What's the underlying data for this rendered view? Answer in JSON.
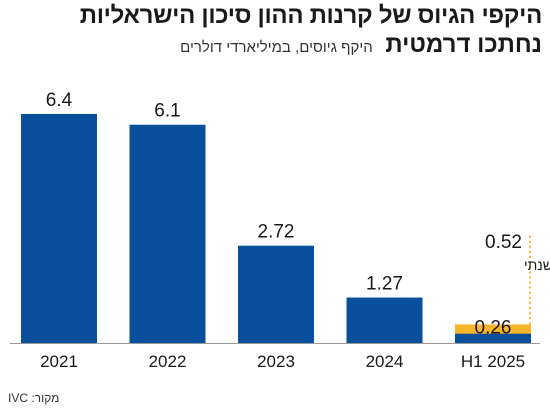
{
  "title": {
    "line1": "היקפי הגיוס של קרנות ההון סיכון הישראליות",
    "line2_bold": "נחתכו דרמטית",
    "subtitle": "היקף גיוסים, במיליארדי דולרים"
  },
  "source": "מקור: IVC",
  "colors": {
    "bar": "#0a4f9c",
    "annual_pace": "#f7b52c",
    "annotation_dots": "#f7b52c",
    "text": "#1a1a1a"
  },
  "chart_data": {
    "type": "bar",
    "title": "",
    "xlabel": "",
    "ylabel": "",
    "categories": [
      "2021",
      "2022",
      "2023",
      "2024",
      "H1 2025"
    ],
    "values": [
      6.4,
      6.1,
      2.72,
      1.27,
      0.26
    ],
    "value_labels": [
      "6.4",
      "6.1",
      "2.72",
      "1.27",
      "0.26"
    ],
    "ylim": [
      0,
      6.4
    ],
    "grid": false,
    "annual_pace": {
      "category": "H1 2025",
      "value": 0.52,
      "value_label": "0.52",
      "label": "קצב שנתי"
    }
  }
}
